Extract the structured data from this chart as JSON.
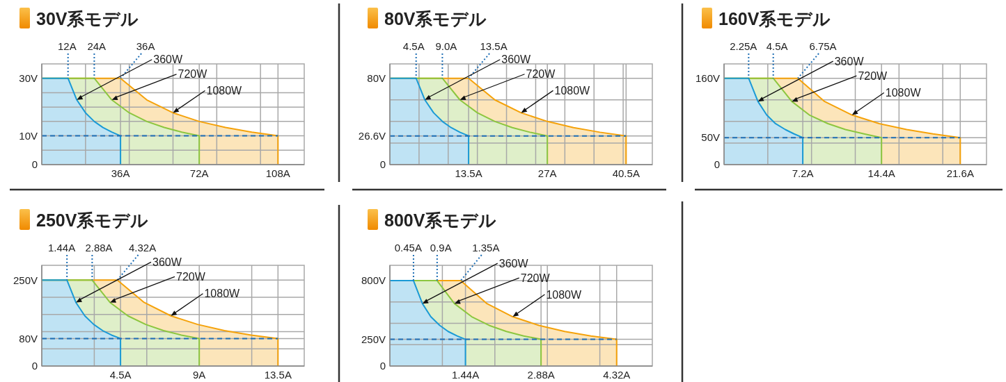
{
  "chart_data": [
    {
      "type": "area",
      "title": "30V系モデル",
      "xlim": [
        0,
        120
      ],
      "ylim": [
        0,
        35
      ],
      "grid": true,
      "xticks": [
        {
          "value": 20,
          "label": null
        },
        {
          "value": 36,
          "label": "36A"
        },
        {
          "value": 40,
          "label": null
        },
        {
          "value": 60,
          "label": null
        },
        {
          "value": 72,
          "label": "72A"
        },
        {
          "value": 80,
          "label": null
        },
        {
          "value": 100,
          "label": null
        },
        {
          "value": 108,
          "label": "108A"
        }
      ],
      "yticks": [
        {
          "value": 0,
          "label": "0"
        },
        {
          "value": 5,
          "label": null
        },
        {
          "value": 10,
          "label": "10V"
        },
        {
          "value": 15,
          "label": null
        },
        {
          "value": 20,
          "label": null
        },
        {
          "value": 25,
          "label": null
        },
        {
          "value": 30,
          "label": "30V"
        }
      ],
      "series": [
        {
          "name": "360W",
          "color": "#1a9ad6",
          "x": [
            0,
            12,
            16,
            20,
            24,
            28,
            32,
            36,
            36
          ],
          "values": [
            30,
            30,
            22.5,
            18,
            15,
            12.9,
            11.3,
            10,
            0
          ]
        },
        {
          "name": "720W",
          "color": "#8cc63f",
          "x": [
            0,
            24,
            32,
            40,
            48,
            56,
            64,
            72,
            72
          ],
          "values": [
            30,
            30,
            22.5,
            18,
            15,
            12.9,
            11.3,
            10,
            0
          ]
        },
        {
          "name": "1080W",
          "color": "#f5a20a",
          "x": [
            0,
            36,
            48,
            60,
            72,
            84,
            96,
            108,
            108
          ],
          "values": [
            30,
            30,
            22.5,
            18,
            15,
            12.9,
            11.3,
            10,
            0
          ]
        }
      ],
      "ref_lines": [
        {
          "axis": "y",
          "value": 10,
          "color": "#1f6fb5",
          "line_style": "dashed"
        }
      ],
      "annotations": [
        {
          "text": "12A",
          "x": 12,
          "y": 30
        },
        {
          "text": "24A",
          "x": 24,
          "y": 30
        },
        {
          "text": "36A",
          "x": 36,
          "y": 30
        }
      ]
    },
    {
      "type": "area",
      "title": "80V系モデル",
      "xlim": [
        0,
        45
      ],
      "ylim": [
        0,
        93.3
      ],
      "grid": true,
      "xticks": [
        {
          "value": 5,
          "label": null
        },
        {
          "value": 10,
          "label": null
        },
        {
          "value": 13.5,
          "label": "13.5A"
        },
        {
          "value": 15,
          "label": null
        },
        {
          "value": 20,
          "label": null
        },
        {
          "value": 25,
          "label": null
        },
        {
          "value": 27,
          "label": "27A"
        },
        {
          "value": 30,
          "label": null
        },
        {
          "value": 35,
          "label": null
        },
        {
          "value": 40,
          "label": null
        },
        {
          "value": 40.5,
          "label": "40.5A"
        }
      ],
      "yticks": [
        {
          "value": 0,
          "label": "0"
        },
        {
          "value": 20,
          "label": null
        },
        {
          "value": 26.6,
          "label": "26.6V"
        },
        {
          "value": 40,
          "label": null
        },
        {
          "value": 60,
          "label": null
        },
        {
          "value": 80,
          "label": "80V"
        }
      ],
      "series": [
        {
          "name": "360W",
          "color": "#1a9ad6",
          "x": [
            0,
            4.5,
            6,
            7.5,
            9,
            10.5,
            12,
            13.5,
            13.5
          ],
          "values": [
            80,
            80,
            60,
            48,
            40,
            34.3,
            30,
            26.6,
            0
          ]
        },
        {
          "name": "720W",
          "color": "#8cc63f",
          "x": [
            0,
            9,
            12,
            15,
            18,
            21,
            24,
            27,
            27
          ],
          "values": [
            80,
            80,
            60,
            48,
            40,
            34.3,
            30,
            26.6,
            0
          ]
        },
        {
          "name": "1080W",
          "color": "#f5a20a",
          "x": [
            0,
            13.5,
            18,
            22.5,
            27,
            31.5,
            36,
            40.5,
            40.5
          ],
          "values": [
            80,
            80,
            60,
            48,
            40,
            34.3,
            30,
            26.6,
            0
          ]
        }
      ],
      "ref_lines": [
        {
          "axis": "y",
          "value": 26.6,
          "color": "#1f6fb5",
          "line_style": "dashed"
        }
      ],
      "annotations": [
        {
          "text": "4.5A",
          "x": 4.5,
          "y": 80
        },
        {
          "text": "9.0A",
          "x": 9,
          "y": 80
        },
        {
          "text": "13.5A",
          "x": 13.5,
          "y": 80
        }
      ]
    },
    {
      "type": "area",
      "title": "160V系モデル",
      "xlim": [
        0,
        24
      ],
      "ylim": [
        0,
        186.7
      ],
      "grid": true,
      "xticks": [
        {
          "value": 4,
          "label": null
        },
        {
          "value": 7.2,
          "label": "7.2A"
        },
        {
          "value": 8,
          "label": null
        },
        {
          "value": 12,
          "label": null
        },
        {
          "value": 14.4,
          "label": "14.4A"
        },
        {
          "value": 16,
          "label": null
        },
        {
          "value": 20,
          "label": null
        },
        {
          "value": 21.6,
          "label": "21.6A"
        }
      ],
      "yticks": [
        {
          "value": 0,
          "label": "0"
        },
        {
          "value": 40,
          "label": null
        },
        {
          "value": 50,
          "label": "50V"
        },
        {
          "value": 80,
          "label": null
        },
        {
          "value": 120,
          "label": null
        },
        {
          "value": 160,
          "label": "160V"
        }
      ],
      "series": [
        {
          "name": "360W",
          "color": "#1a9ad6",
          "x": [
            0,
            2.25,
            3.1,
            3.9,
            4.7,
            5.6,
            6.4,
            7.2,
            7.2
          ],
          "values": [
            160,
            160,
            117,
            92,
            76,
            65,
            57,
            50,
            0
          ]
        },
        {
          "name": "720W",
          "color": "#8cc63f",
          "x": [
            0,
            4.5,
            6.2,
            7.8,
            9.5,
            11.1,
            12.8,
            14.4,
            14.4
          ],
          "values": [
            160,
            160,
            117,
            92,
            76,
            65,
            57,
            50,
            0
          ]
        },
        {
          "name": "1080W",
          "color": "#f5a20a",
          "x": [
            0,
            6.75,
            9.2,
            11.7,
            14.2,
            16.7,
            19.1,
            21.6,
            21.6
          ],
          "values": [
            160,
            160,
            117,
            92,
            76,
            65,
            57,
            50,
            0
          ]
        }
      ],
      "ref_lines": [
        {
          "axis": "y",
          "value": 50,
          "color": "#1f6fb5",
          "line_style": "dashed"
        }
      ],
      "annotations": [
        {
          "text": "2.25A",
          "x": 2.25,
          "y": 160
        },
        {
          "text": "4.5A",
          "x": 4.5,
          "y": 160
        },
        {
          "text": "6.75A",
          "x": 6.75,
          "y": 160
        }
      ]
    },
    {
      "type": "area",
      "title": "250V系モデル",
      "xlim": [
        0,
        15
      ],
      "ylim": [
        0,
        293
      ],
      "grid": true,
      "xticks": [
        {
          "value": 3,
          "label": null
        },
        {
          "value": 4.5,
          "label": "4.5A"
        },
        {
          "value": 6,
          "label": null
        },
        {
          "value": 9,
          "label": "9A"
        },
        {
          "value": 12,
          "label": null
        },
        {
          "value": 13.5,
          "label": "13.5A"
        }
      ],
      "yticks": [
        {
          "value": 0,
          "label": "0"
        },
        {
          "value": 50,
          "label": null
        },
        {
          "value": 80,
          "label": "80V"
        },
        {
          "value": 100,
          "label": null
        },
        {
          "value": 150,
          "label": null
        },
        {
          "value": 200,
          "label": null
        },
        {
          "value": 250,
          "label": "250V"
        }
      ],
      "series": [
        {
          "name": "360W",
          "color": "#1a9ad6",
          "x": [
            0,
            1.44,
            1.95,
            2.46,
            2.97,
            3.48,
            3.99,
            4.5,
            4.5
          ],
          "values": [
            250,
            250,
            185,
            146,
            121,
            103,
            90,
            80,
            0
          ]
        },
        {
          "name": "720W",
          "color": "#8cc63f",
          "x": [
            0,
            2.88,
            3.9,
            4.92,
            5.94,
            6.96,
            7.98,
            9,
            9
          ],
          "values": [
            250,
            250,
            185,
            146,
            121,
            103,
            90,
            80,
            0
          ]
        },
        {
          "name": "1080W",
          "color": "#f5a20a",
          "x": [
            0,
            4.32,
            5.85,
            7.38,
            8.91,
            10.44,
            11.97,
            13.5,
            13.5
          ],
          "values": [
            250,
            250,
            185,
            146,
            121,
            103,
            90,
            80,
            0
          ]
        }
      ],
      "ref_lines": [
        {
          "axis": "y",
          "value": 80,
          "color": "#1f6fb5",
          "line_style": "dashed"
        }
      ],
      "annotations": [
        {
          "text": "1.44A",
          "x": 1.44,
          "y": 250
        },
        {
          "text": "2.88A",
          "x": 2.88,
          "y": 250
        },
        {
          "text": "4.32A",
          "x": 4.32,
          "y": 250
        }
      ]
    },
    {
      "type": "area",
      "title": "800V系モデル",
      "xlim": [
        0,
        5
      ],
      "ylim": [
        0,
        944
      ],
      "grid": true,
      "xticks": [
        {
          "value": 1,
          "label": null
        },
        {
          "value": 1.44,
          "label": "1.44A"
        },
        {
          "value": 2,
          "label": null
        },
        {
          "value": 2.88,
          "label": "2.88A"
        },
        {
          "value": 3,
          "label": null
        },
        {
          "value": 4,
          "label": null
        },
        {
          "value": 4.32,
          "label": "4.32A"
        }
      ],
      "yticks": [
        {
          "value": 0,
          "label": "0"
        },
        {
          "value": 200,
          "label": null
        },
        {
          "value": 250,
          "label": "250V"
        },
        {
          "value": 400,
          "label": null
        },
        {
          "value": 600,
          "label": null
        },
        {
          "value": 800,
          "label": "800V"
        }
      ],
      "series": [
        {
          "name": "360W",
          "color": "#1a9ad6",
          "x": [
            0,
            0.45,
            0.62,
            0.78,
            0.95,
            1.11,
            1.28,
            1.44,
            1.44
          ],
          "values": [
            800,
            800,
            585,
            462,
            381,
            324,
            282,
            250,
            0
          ]
        },
        {
          "name": "720W",
          "color": "#8cc63f",
          "x": [
            0,
            0.9,
            1.23,
            1.56,
            1.89,
            2.22,
            2.55,
            2.88,
            2.88
          ],
          "values": [
            800,
            800,
            585,
            462,
            381,
            324,
            282,
            250,
            0
          ]
        },
        {
          "name": "1080W",
          "color": "#f5a20a",
          "x": [
            0,
            1.35,
            1.85,
            2.34,
            2.84,
            3.33,
            3.83,
            4.32,
            4.32
          ],
          "values": [
            800,
            800,
            585,
            462,
            381,
            324,
            282,
            250,
            0
          ]
        }
      ],
      "ref_lines": [
        {
          "axis": "y",
          "value": 250,
          "color": "#1f6fb5",
          "line_style": "dashed"
        }
      ],
      "annotations": [
        {
          "text": "0.45A",
          "x": 0.45,
          "y": 800
        },
        {
          "text": "0.9A",
          "x": 0.9,
          "y": 800
        },
        {
          "text": "1.35A",
          "x": 1.35,
          "y": 800
        }
      ]
    }
  ]
}
